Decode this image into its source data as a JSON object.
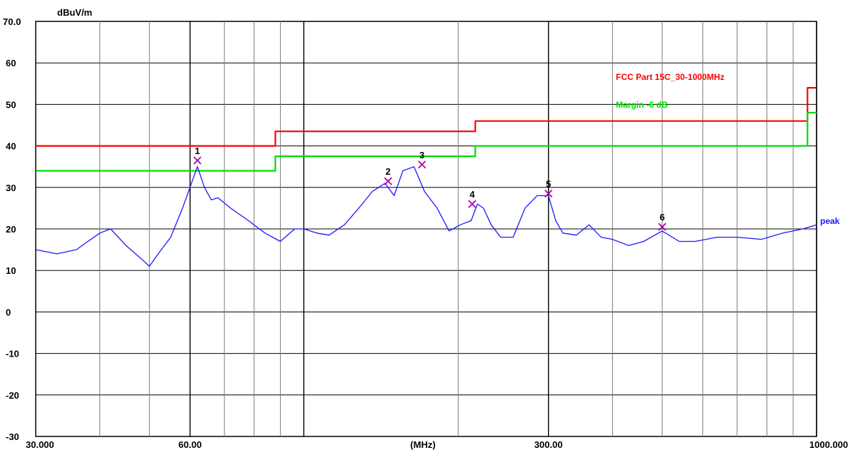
{
  "chart_data": {
    "type": "line",
    "ylabel": "dBuV/m",
    "xlabel": "(MHz)",
    "x_scale": "log",
    "xlim": [
      30,
      1000
    ],
    "ylim": [
      -30,
      70
    ],
    "y_ticks": [
      "70.0",
      "60",
      "50",
      "40",
      "30",
      "20",
      "10",
      "0",
      "-10",
      "-20",
      "-30"
    ],
    "y_tick_values": [
      70,
      60,
      50,
      40,
      30,
      20,
      10,
      0,
      -10,
      -20,
      -30
    ],
    "x_tick_labels": [
      {
        "value": 30,
        "label": "30.000"
      },
      {
        "value": 60,
        "label": "60.00"
      },
      {
        "value": 300,
        "label": "300.00"
      },
      {
        "value": 1000,
        "label": "1000.000"
      }
    ],
    "grid": true,
    "legend_position": "top-right",
    "series": [
      {
        "name": "FCC Part 15C_30-1000MHz",
        "color": "#ff0000",
        "step": true,
        "x": [
          30,
          88,
          88,
          216,
          216,
          960,
          960,
          1000
        ],
        "y": [
          40,
          40,
          43.5,
          43.5,
          46,
          46,
          54,
          54
        ]
      },
      {
        "name": "Margin -6 dB",
        "color": "#00dd00",
        "step": true,
        "x": [
          30,
          88,
          88,
          216,
          216,
          960,
          960,
          1000
        ],
        "y": [
          34,
          34,
          37.5,
          37.5,
          40,
          40,
          48,
          48
        ]
      },
      {
        "name": "peak",
        "color": "#1a1aff",
        "x": [
          30,
          33,
          36,
          40,
          42,
          45,
          48,
          50,
          52,
          55,
          58,
          62,
          64,
          66,
          68,
          72,
          78,
          84,
          90,
          96,
          100,
          106,
          112,
          120,
          128,
          136,
          144,
          150,
          156,
          164,
          172,
          182,
          192,
          202,
          212,
          218,
          224,
          232,
          242,
          256,
          270,
          285,
          300,
          310,
          320,
          340,
          360,
          380,
          400,
          430,
          460,
          500,
          540,
          580,
          640,
          700,
          780,
          860,
          940,
          1000
        ],
        "y": [
          15,
          14,
          15,
          19,
          20,
          16,
          13,
          11,
          14,
          18,
          25,
          35,
          30,
          27,
          27.5,
          25,
          22,
          19,
          17,
          20,
          20,
          19,
          18.5,
          21,
          25,
          29,
          31,
          28,
          34,
          35,
          29,
          25,
          19.5,
          21,
          22,
          26,
          25,
          21,
          18,
          18,
          25,
          28,
          28,
          22,
          19,
          18.5,
          21,
          18,
          17.5,
          16,
          17,
          19.5,
          17,
          17,
          18,
          18,
          17.5,
          19,
          20,
          21
        ]
      }
    ],
    "markers": [
      {
        "label": "1",
        "x": 62,
        "y": 36.5
      },
      {
        "label": "2",
        "x": 146,
        "y": 31.5
      },
      {
        "label": "3",
        "x": 170,
        "y": 35.5
      },
      {
        "label": "4",
        "x": 213,
        "y": 26
      },
      {
        "label": "5",
        "x": 300,
        "y": 28.5
      },
      {
        "label": "6",
        "x": 500,
        "y": 20.5
      }
    ]
  }
}
